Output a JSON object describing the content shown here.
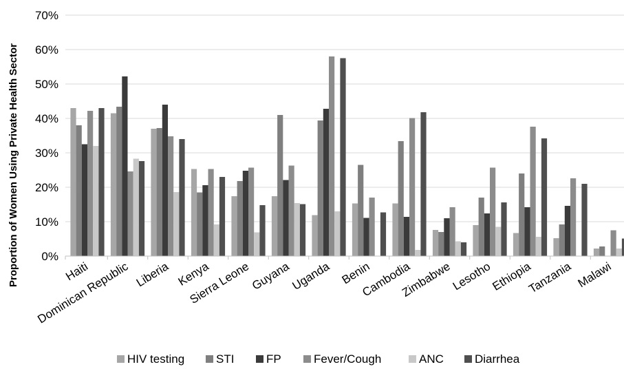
{
  "chart_data": {
    "type": "bar",
    "title": "",
    "xlabel": "",
    "ylabel": "Proportion of Women Using Private Health Sector",
    "ylim": [
      0,
      70
    ],
    "y_ticks": [
      "0%",
      "10%",
      "20%",
      "30%",
      "40%",
      "50%",
      "60%",
      "70%"
    ],
    "grid": true,
    "legend_position": "bottom",
    "categories": [
      "Haiti",
      "Dominican Republic",
      "Liberia",
      "Kenya",
      "Sierra Leone",
      "Guyana",
      "Uganda",
      "Benin",
      "Cambodia",
      "Zimbabwe",
      "Lesotho",
      "Ethiopia",
      "Tanzania",
      "Malawi"
    ],
    "series": [
      {
        "name": "HIV testing",
        "color": "#a6a6a6",
        "values": [
          43.0,
          41.5,
          37.0,
          25.3,
          17.4,
          17.4,
          11.9,
          15.3,
          15.3,
          7.6,
          9.0,
          6.7,
          5.2,
          2.2
        ]
      },
      {
        "name": "STI",
        "color": "#7f7f7f",
        "values": [
          38.0,
          43.4,
          37.2,
          18.5,
          21.8,
          41.0,
          39.4,
          26.5,
          33.4,
          7.0,
          17.0,
          24.0,
          9.2,
          2.8
        ]
      },
      {
        "name": "FP",
        "color": "#3b3b3b",
        "values": [
          32.5,
          52.2,
          44.0,
          20.6,
          24.8,
          22.1,
          42.8,
          11.1,
          11.4,
          11.0,
          12.4,
          14.2,
          14.6,
          0
        ]
      },
      {
        "name": "Fever/Cough",
        "color": "#8c8c8c",
        "values": [
          42.2,
          24.6,
          34.8,
          25.3,
          25.7,
          26.3,
          58.0,
          17.0,
          40.1,
          14.2,
          25.7,
          37.6,
          22.6,
          7.5
        ]
      },
      {
        "name": "ANC",
        "color": "#c8c8c8",
        "values": [
          32.0,
          28.3,
          18.6,
          9.2,
          6.9,
          15.4,
          13.0,
          0,
          1.8,
          4.3,
          8.5,
          5.6,
          0,
          2.2
        ]
      },
      {
        "name": "Diarrhea",
        "color": "#4f4f4f",
        "values": [
          43.0,
          27.6,
          34.0,
          23.0,
          14.8,
          15.1,
          57.5,
          12.7,
          41.8,
          4.0,
          15.6,
          34.2,
          21.0,
          5.1
        ]
      }
    ]
  }
}
